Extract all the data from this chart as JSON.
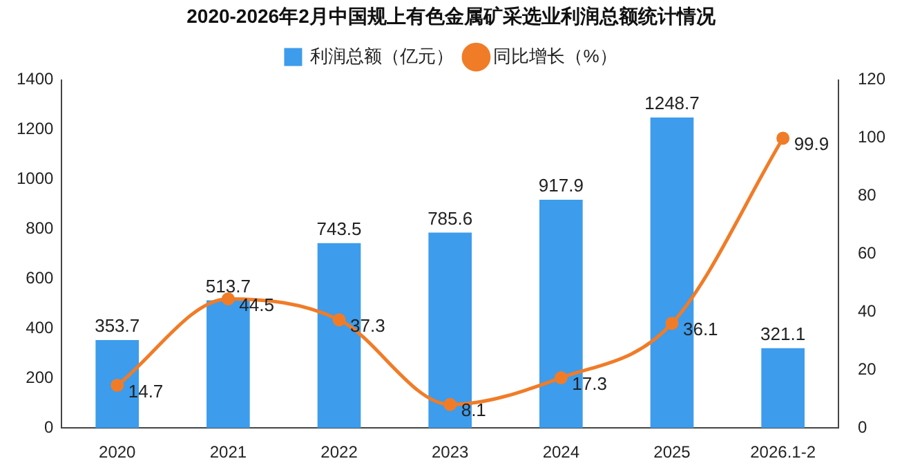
{
  "chart_data": {
    "type": "bar",
    "title": "2020-2026年2月中国规上有色金属矿采选业利润总额统计情况",
    "categories": [
      "2020",
      "2021",
      "2022",
      "2023",
      "2024",
      "2025",
      "2026.1-2"
    ],
    "series": [
      {
        "name": "利润总额（亿元）",
        "color": "#3d9cec",
        "values": [
          353.7,
          513.7,
          743.5,
          785.6,
          917.9,
          1248.7,
          321.1
        ]
      },
      {
        "name": "同比增长（%）",
        "type": "line",
        "axis": "y2",
        "color": "#f07c28",
        "values": [
          14.7,
          44.5,
          37.3,
          8.1,
          17.3,
          36.1,
          99.9
        ]
      }
    ],
    "ylim": [
      0,
      1400
    ],
    "yticks": [
      0,
      200,
      400,
      600,
      800,
      1000,
      1200,
      1400
    ],
    "y2lim": [
      0,
      120
    ],
    "y2ticks": [
      0,
      20,
      40,
      60,
      80,
      100,
      120
    ],
    "data_labels": true,
    "legend": "top",
    "grid": false,
    "marker": "circle",
    "line_style": "solid"
  }
}
